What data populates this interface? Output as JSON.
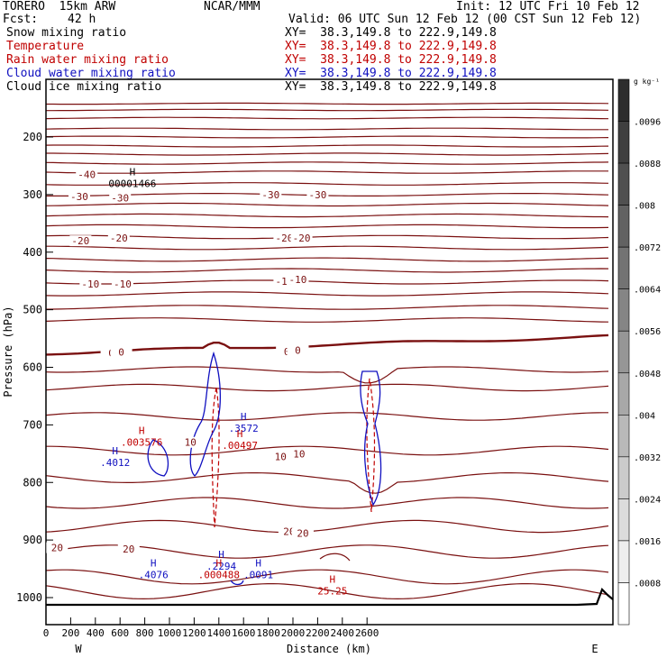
{
  "header": {
    "model": "TORERO  15km ARW",
    "org": "NCAR/MMM",
    "init": "Init: 12 UTC Fri 10 Feb 12",
    "fcst_label": "Fcst:",
    "fcst_value": "42 h",
    "valid": "Valid: 06 UTC Sun 12 Feb 12 (00 CST Sun 12 Feb 12)"
  },
  "fields": [
    {
      "name": "Snow mixing ratio",
      "xy": "",
      "color": "#000000"
    },
    {
      "name": "Temperature",
      "xy": "XY=  38.3,149.8 to 222.9,149.8",
      "color": "#c00000"
    },
    {
      "name": "Rain water mixing ratio",
      "xy": "XY=  38.3,149.8 to 222.9,149.8",
      "color": "#c00000"
    },
    {
      "name": "Cloud water mixing ratio",
      "xy": "XY=  38.3,149.8 to 222.9,149.8",
      "color": "#1010c0"
    },
    {
      "name": "Cloud ice mixing ratio",
      "xy": "XY=  38.3,149.8 to 222.9,149.8",
      "color": "#000000"
    }
  ],
  "snow_xy": "XY=  38.3,149.8 to 222.9,149.8",
  "chart_data": {
    "type": "contour cross-section",
    "xlabel": "Distance (km)",
    "ylabel": "Pressure (hPa)",
    "xlim": [
      0,
      2800
    ],
    "ylim": [
      1050,
      100
    ],
    "x_ticks": [
      0,
      200,
      400,
      600,
      800,
      1000,
      1200,
      1400,
      1600,
      1800,
      2000,
      2200,
      2400,
      2600
    ],
    "y_ticks": [
      200,
      300,
      400,
      500,
      600,
      700,
      800,
      900,
      1000
    ],
    "x_end_labels": {
      "left": "W",
      "right": "E"
    },
    "colorbar": {
      "unit": "g kg⁻¹",
      "ticks": [
        ".0008",
        ".0016",
        ".0024",
        ".0032",
        ".004",
        ".0048",
        ".0056",
        ".0064",
        ".0072",
        ".008",
        ".0088",
        ".0096"
      ]
    },
    "temperature_labels": [
      {
        "text": "-40",
        "x": 330,
        "p": 270
      },
      {
        "text": "-30",
        "x": 270,
        "p": 308
      },
      {
        "text": "-30",
        "x": 600,
        "p": 310
      },
      {
        "text": "-30",
        "x": 1820,
        "p": 305
      },
      {
        "text": "-30",
        "x": 2200,
        "p": 305
      },
      {
        "text": "-20",
        "x": 280,
        "p": 385
      },
      {
        "text": "-20",
        "x": 590,
        "p": 380
      },
      {
        "text": "-20",
        "x": 1930,
        "p": 380
      },
      {
        "text": "-20",
        "x": 2070,
        "p": 380
      },
      {
        "text": "-10",
        "x": 360,
        "p": 460
      },
      {
        "text": "-10",
        "x": 620,
        "p": 460
      },
      {
        "text": "-10",
        "x": 1930,
        "p": 455
      },
      {
        "text": "-10",
        "x": 2040,
        "p": 452
      },
      {
        "text": "0",
        "x": 530,
        "p": 580
      },
      {
        "text": "0",
        "x": 610,
        "p": 578
      },
      {
        "text": "0",
        "x": 1950,
        "p": 577
      },
      {
        "text": "0",
        "x": 2040,
        "p": 575
      },
      {
        "text": "10",
        "x": 1170,
        "p": 735
      },
      {
        "text": "10",
        "x": 1900,
        "p": 760
      },
      {
        "text": "10",
        "x": 2050,
        "p": 755
      },
      {
        "text": "20",
        "x": 90,
        "p": 918
      },
      {
        "text": "20",
        "x": 670,
        "p": 920
      },
      {
        "text": "20",
        "x": 1970,
        "p": 890
      },
      {
        "text": "20",
        "x": 2080,
        "p": 893
      }
    ],
    "extrema_labels": [
      {
        "mark": "H",
        "value": "00001466",
        "x": 700,
        "p": 285,
        "color": "#000000"
      },
      {
        "mark": "H",
        "value": ".003576",
        "x": 775,
        "p": 735,
        "color": "#c00000"
      },
      {
        "mark": "H",
        "value": ".4012",
        "x": 560,
        "p": 770,
        "color": "#1010c0"
      },
      {
        "mark": "H",
        "value": ".3572",
        "x": 1600,
        "p": 710,
        "color": "#1010c0"
      },
      {
        "mark": "H",
        "value": ".00497",
        "x": 1570,
        "p": 740,
        "color": "#c00000"
      },
      {
        "mark": "H",
        "value": ".4076",
        "x": 870,
        "p": 965,
        "color": "#1010c0"
      },
      {
        "mark": "H",
        "value": ".2294",
        "x": 1420,
        "p": 950,
        "color": "#1010c0"
      },
      {
        "mark": "H",
        "value": ".000488",
        "x": 1400,
        "p": 965,
        "color": "#c00000"
      },
      {
        "mark": "H",
        "value": ".0091",
        "x": 1720,
        "p": 965,
        "color": "#1010c0"
      },
      {
        "mark": "H",
        "value": "25.25",
        "x": 2320,
        "p": 993,
        "color": "#c00000"
      }
    ]
  }
}
